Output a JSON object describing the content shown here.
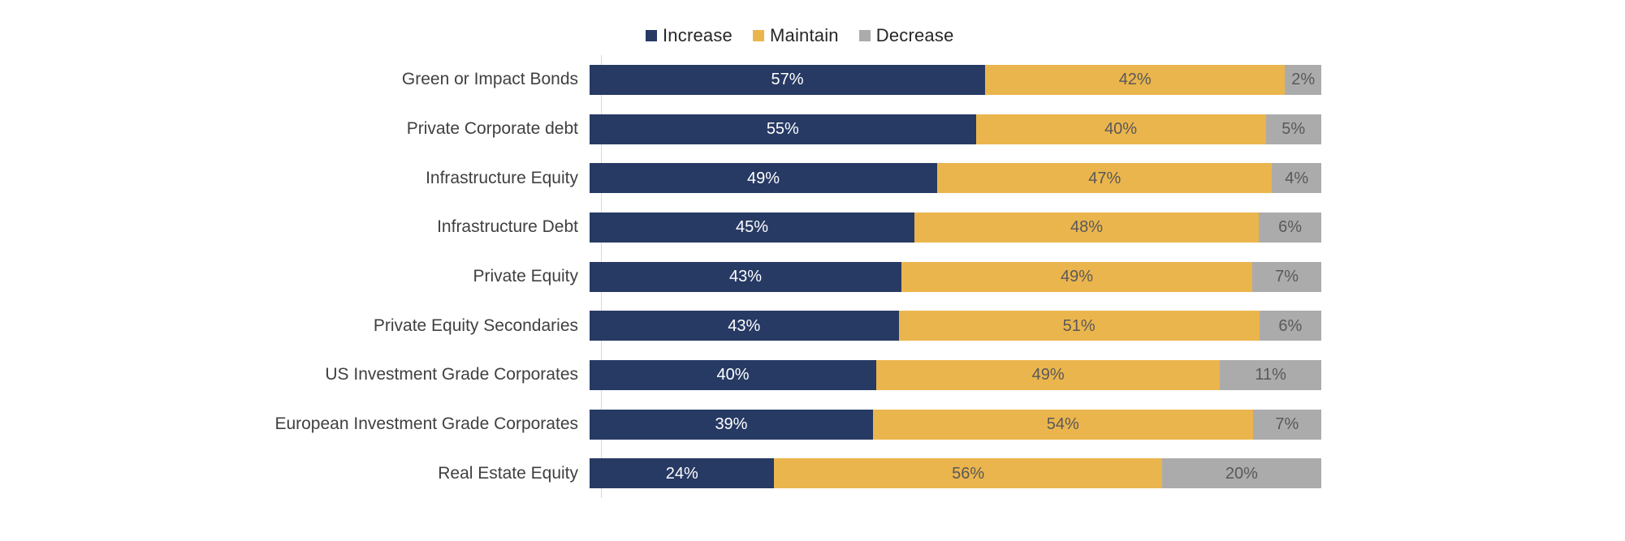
{
  "chart_data": {
    "type": "bar",
    "variant": "stacked-horizontal-percent",
    "title": "",
    "xlabel": "",
    "ylabel": "",
    "xlim": [
      0,
      100
    ],
    "grid": false,
    "legend_position": "top",
    "background": "#FFFFFF",
    "axis_line_color": "#D9D9D9",
    "label_color": "#404040",
    "value_suffix": "%",
    "categories": [
      "Green or Impact Bonds",
      "Private Corporate debt",
      "Infrastructure Equity",
      "Infrastructure Debt",
      "Private Equity",
      "Private Equity Secondaries",
      "US Investment Grade Corporates",
      "European Investment Grade Corporates",
      "Real Estate Equity"
    ],
    "series": [
      {
        "name": "Increase",
        "color": "#273A64",
        "text_color": "#FFFFFF",
        "values": [
          57,
          55,
          49,
          45,
          43,
          43,
          40,
          39,
          24
        ]
      },
      {
        "name": "Maintain",
        "color": "#EBB54D",
        "text_color": "#595959",
        "values": [
          42,
          40,
          47,
          48,
          49,
          51,
          49,
          54,
          56
        ]
      },
      {
        "name": "Decrease",
        "color": "#ACABAB",
        "text_color": "#595959",
        "values": [
          2,
          5,
          4,
          6,
          7,
          6,
          11,
          7,
          20
        ]
      }
    ]
  }
}
